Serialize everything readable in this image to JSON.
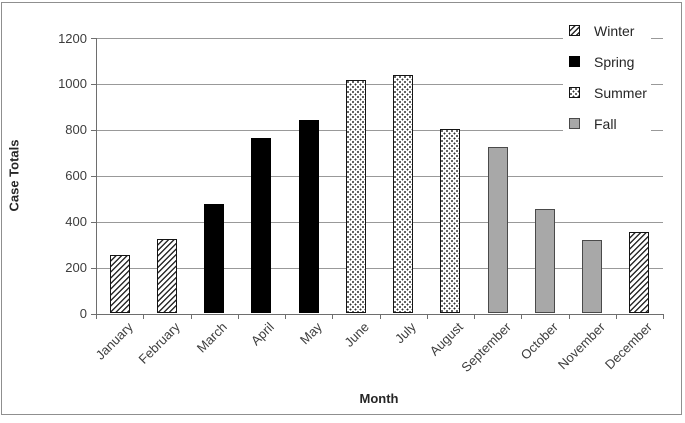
{
  "chart_data": {
    "type": "bar",
    "title": "",
    "xlabel": "Month",
    "ylabel": "Case Totals",
    "ylim": [
      0,
      1200
    ],
    "yticks": [
      0,
      200,
      400,
      600,
      800,
      1000,
      1200
    ],
    "grid": true,
    "legend_position": "top-right",
    "categories": [
      "January",
      "February",
      "March",
      "April",
      "May",
      "June",
      "July",
      "August",
      "September",
      "October",
      "November",
      "December"
    ],
    "values": [
      255,
      325,
      475,
      765,
      845,
      1015,
      1040,
      805,
      725,
      455,
      320,
      355
    ],
    "seasons": [
      "Winter",
      "Winter",
      "Spring",
      "Spring",
      "Spring",
      "Summer",
      "Summer",
      "Summer",
      "Fall",
      "Fall",
      "Fall",
      "Winter"
    ],
    "legend": [
      {
        "label": "Winter",
        "pattern": "diagonal-hatch",
        "css": "fill-winter"
      },
      {
        "label": "Spring",
        "pattern": "solid-black",
        "css": "fill-spring"
      },
      {
        "label": "Summer",
        "pattern": "dotted",
        "css": "fill-summer"
      },
      {
        "label": "Fall",
        "pattern": "solid-gray",
        "css": "fill-fall"
      }
    ],
    "colors": {
      "fall_fill": "#a8a8a8",
      "bar_black": "#000000",
      "gridline": "#999999",
      "axis": "#6e6e6e",
      "text": "#3d3d3d"
    }
  }
}
